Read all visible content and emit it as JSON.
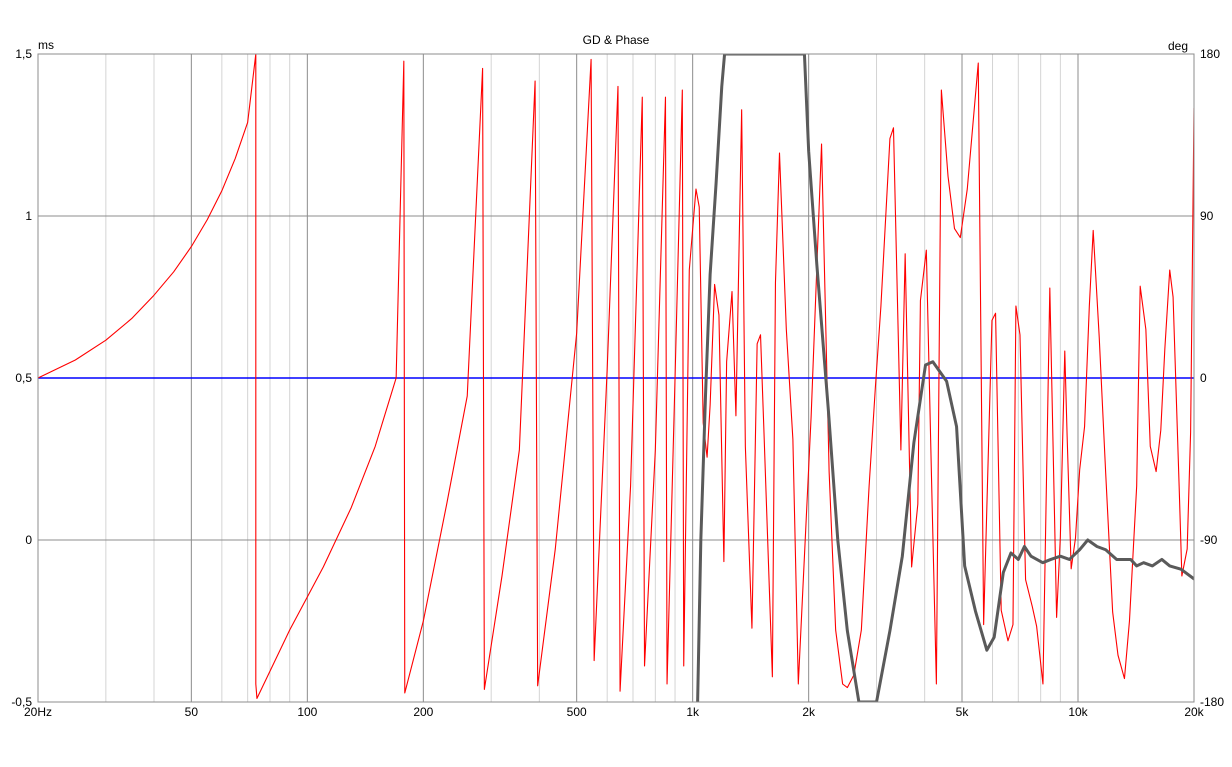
{
  "chart_data": {
    "type": "line",
    "title": "GD & Phase",
    "left_axis": {
      "unit_label": "ms",
      "ylim": [
        -0.5,
        1.5
      ],
      "ticks": [
        -0.5,
        0,
        0.5,
        1,
        1.5
      ],
      "tick_labels": [
        "-0,5",
        "0",
        "0,5",
        "1",
        "1,5"
      ]
    },
    "right_axis": {
      "unit_label": "deg",
      "ylim": [
        -180,
        180
      ],
      "ticks": [
        -180,
        -90,
        0,
        90,
        180
      ],
      "tick_labels": [
        "-180",
        "-90",
        "0",
        "90",
        "180"
      ]
    },
    "x_axis": {
      "scale": "log",
      "xlim": [
        20,
        20000
      ],
      "ticks": [
        20,
        50,
        100,
        200,
        500,
        1000,
        2000,
        5000,
        10000,
        20000
      ],
      "tick_labels": [
        "20Hz",
        "50",
        "100",
        "200",
        "500",
        "1k",
        "2k",
        "5k",
        "10k",
        "20k"
      ],
      "minor_grid": [
        30,
        40,
        60,
        70,
        80,
        90,
        300,
        400,
        600,
        700,
        800,
        900,
        3000,
        4000,
        6000,
        7000,
        8000,
        9000
      ]
    },
    "grid": true,
    "colors": {
      "phase": "#ff0000",
      "group_delay": "#5a5a5a",
      "reference": "#0000ff",
      "major_grid": "#8c8c8c",
      "minor_grid": "#d4d4d4"
    },
    "series": [
      {
        "key": "phase",
        "axis": "right",
        "points": [
          [
            20,
            0
          ],
          [
            25,
            10
          ],
          [
            30,
            21
          ],
          [
            35,
            33
          ],
          [
            40,
            46
          ],
          [
            45,
            59
          ],
          [
            50,
            73
          ],
          [
            55,
            88
          ],
          [
            60,
            104
          ],
          [
            65,
            122
          ],
          [
            70,
            142
          ],
          [
            73.5,
            180
          ],
          [
            73.5,
            -170
          ],
          [
            74,
            -178
          ],
          [
            90,
            -140
          ],
          [
            110,
            -105
          ],
          [
            130,
            -72
          ],
          [
            150,
            -38
          ],
          [
            170,
            0
          ],
          [
            178,
            176
          ],
          [
            179,
            -175
          ],
          [
            200,
            -135
          ],
          [
            230,
            -70
          ],
          [
            260,
            -10
          ],
          [
            285,
            172
          ],
          [
            288,
            -173
          ],
          [
            320,
            -110
          ],
          [
            355,
            -40
          ],
          [
            390,
            165
          ],
          [
            396,
            -171
          ],
          [
            440,
            -95
          ],
          [
            500,
            25
          ],
          [
            545,
            177
          ],
          [
            555,
            -157
          ],
          [
            600,
            5
          ],
          [
            640,
            162
          ],
          [
            648,
            -174
          ],
          [
            690,
            -60
          ],
          [
            740,
            156
          ],
          [
            750,
            -160
          ],
          [
            800,
            -40
          ],
          [
            850,
            156
          ],
          [
            858,
            -170
          ],
          [
            900,
            0
          ],
          [
            940,
            160
          ],
          [
            948,
            -160
          ],
          [
            980,
            60
          ],
          [
            1020,
            105
          ],
          [
            1040,
            95
          ],
          [
            1065,
            -25
          ],
          [
            1090,
            -44
          ],
          [
            1110,
            -15
          ],
          [
            1140,
            52
          ],
          [
            1170,
            35
          ],
          [
            1205,
            -102
          ],
          [
            1225,
            9
          ],
          [
            1265,
            48
          ],
          [
            1295,
            -21
          ],
          [
            1340,
            149
          ],
          [
            1370,
            -38
          ],
          [
            1425,
            -139
          ],
          [
            1470,
            19
          ],
          [
            1500,
            24
          ],
          [
            1530,
            -28
          ],
          [
            1610,
            -166
          ],
          [
            1640,
            53
          ],
          [
            1680,
            125
          ],
          [
            1750,
            27
          ],
          [
            1820,
            -34
          ],
          [
            1880,
            -170
          ],
          [
            2030,
            -21
          ],
          [
            2160,
            130
          ],
          [
            2260,
            -52
          ],
          [
            2350,
            -140
          ],
          [
            2450,
            -170
          ],
          [
            2520,
            -172
          ],
          [
            2620,
            -165
          ],
          [
            2740,
            -140
          ],
          [
            2870,
            -60
          ],
          [
            2980,
            -5
          ],
          [
            3080,
            40
          ],
          [
            3250,
            133
          ],
          [
            3320,
            139
          ],
          [
            3470,
            -40
          ],
          [
            3560,
            69
          ],
          [
            3700,
            -105
          ],
          [
            3840,
            -70
          ],
          [
            3900,
            43
          ],
          [
            4040,
            71
          ],
          [
            4180,
            -68
          ],
          [
            4290,
            -170
          ],
          [
            4420,
            160
          ],
          [
            4600,
            112
          ],
          [
            4780,
            83
          ],
          [
            4950,
            78
          ],
          [
            5160,
            105
          ],
          [
            5510,
            175
          ],
          [
            5690,
            -137
          ],
          [
            5980,
            32
          ],
          [
            6110,
            36
          ],
          [
            6320,
            -129
          ],
          [
            6580,
            -146
          ],
          [
            6780,
            -137
          ],
          [
            6900,
            40
          ],
          [
            7070,
            24
          ],
          [
            7310,
            -112
          ],
          [
            7610,
            -127
          ],
          [
            7810,
            -138
          ],
          [
            8110,
            -170
          ],
          [
            8450,
            50
          ],
          [
            8800,
            -133
          ],
          [
            9000,
            -88
          ],
          [
            9240,
            15
          ],
          [
            9370,
            -32
          ],
          [
            9600,
            -106
          ],
          [
            9850,
            -89
          ],
          [
            10100,
            -51
          ],
          [
            10400,
            -27
          ],
          [
            10700,
            40
          ],
          [
            10950,
            82
          ],
          [
            11350,
            23
          ],
          [
            11800,
            -53
          ],
          [
            12300,
            -130
          ],
          [
            12700,
            -154
          ],
          [
            13200,
            -167
          ],
          [
            13600,
            -135
          ],
          [
            14200,
            -60
          ],
          [
            14500,
            51
          ],
          [
            15000,
            27
          ],
          [
            15400,
            -38
          ],
          [
            15950,
            -52
          ],
          [
            16400,
            -29
          ],
          [
            16800,
            16
          ],
          [
            17300,
            60
          ],
          [
            17650,
            45
          ],
          [
            18300,
            -60
          ],
          [
            18600,
            -110
          ],
          [
            19200,
            -95
          ],
          [
            19600,
            -30
          ],
          [
            20000,
            150
          ]
        ]
      },
      {
        "key": "group_delay",
        "axis": "left",
        "points": [
          [
            1030,
            -0.5
          ],
          [
            1050,
            0.0
          ],
          [
            1080,
            0.45
          ],
          [
            1110,
            0.82
          ],
          [
            1150,
            1.1
          ],
          [
            1190,
            1.4
          ],
          [
            1210,
            1.5
          ],
          [
            1950,
            1.5
          ],
          [
            2000,
            1.2
          ],
          [
            2100,
            0.85
          ],
          [
            2250,
            0.4
          ],
          [
            2380,
            0.0
          ],
          [
            2520,
            -0.28
          ],
          [
            2700,
            -0.5
          ],
          [
            3000,
            -0.5
          ],
          [
            3250,
            -0.28
          ],
          [
            3500,
            -0.05
          ],
          [
            3750,
            0.3
          ],
          [
            4020,
            0.54
          ],
          [
            4200,
            0.55
          ],
          [
            4560,
            0.49
          ],
          [
            4840,
            0.35
          ],
          [
            5080,
            -0.08
          ],
          [
            5420,
            -0.22
          ],
          [
            5800,
            -0.34
          ],
          [
            6060,
            -0.3
          ],
          [
            6400,
            -0.1
          ],
          [
            6700,
            -0.04
          ],
          [
            7000,
            -0.06
          ],
          [
            7260,
            -0.02
          ],
          [
            7550,
            -0.05
          ],
          [
            8100,
            -0.07
          ],
          [
            8500,
            -0.06
          ],
          [
            9000,
            -0.05
          ],
          [
            9500,
            -0.06
          ],
          [
            10100,
            -0.03
          ],
          [
            10600,
            0.0
          ],
          [
            11200,
            -0.02
          ],
          [
            11800,
            -0.03
          ],
          [
            12600,
            -0.06
          ],
          [
            13700,
            -0.06
          ],
          [
            14200,
            -0.08
          ],
          [
            14800,
            -0.07
          ],
          [
            15600,
            -0.08
          ],
          [
            16500,
            -0.06
          ],
          [
            17300,
            -0.08
          ],
          [
            18500,
            -0.09
          ],
          [
            20000,
            -0.12
          ]
        ]
      },
      {
        "key": "reference",
        "axis": "right",
        "points": [
          [
            20,
            0
          ],
          [
            20000,
            0
          ]
        ]
      }
    ]
  }
}
